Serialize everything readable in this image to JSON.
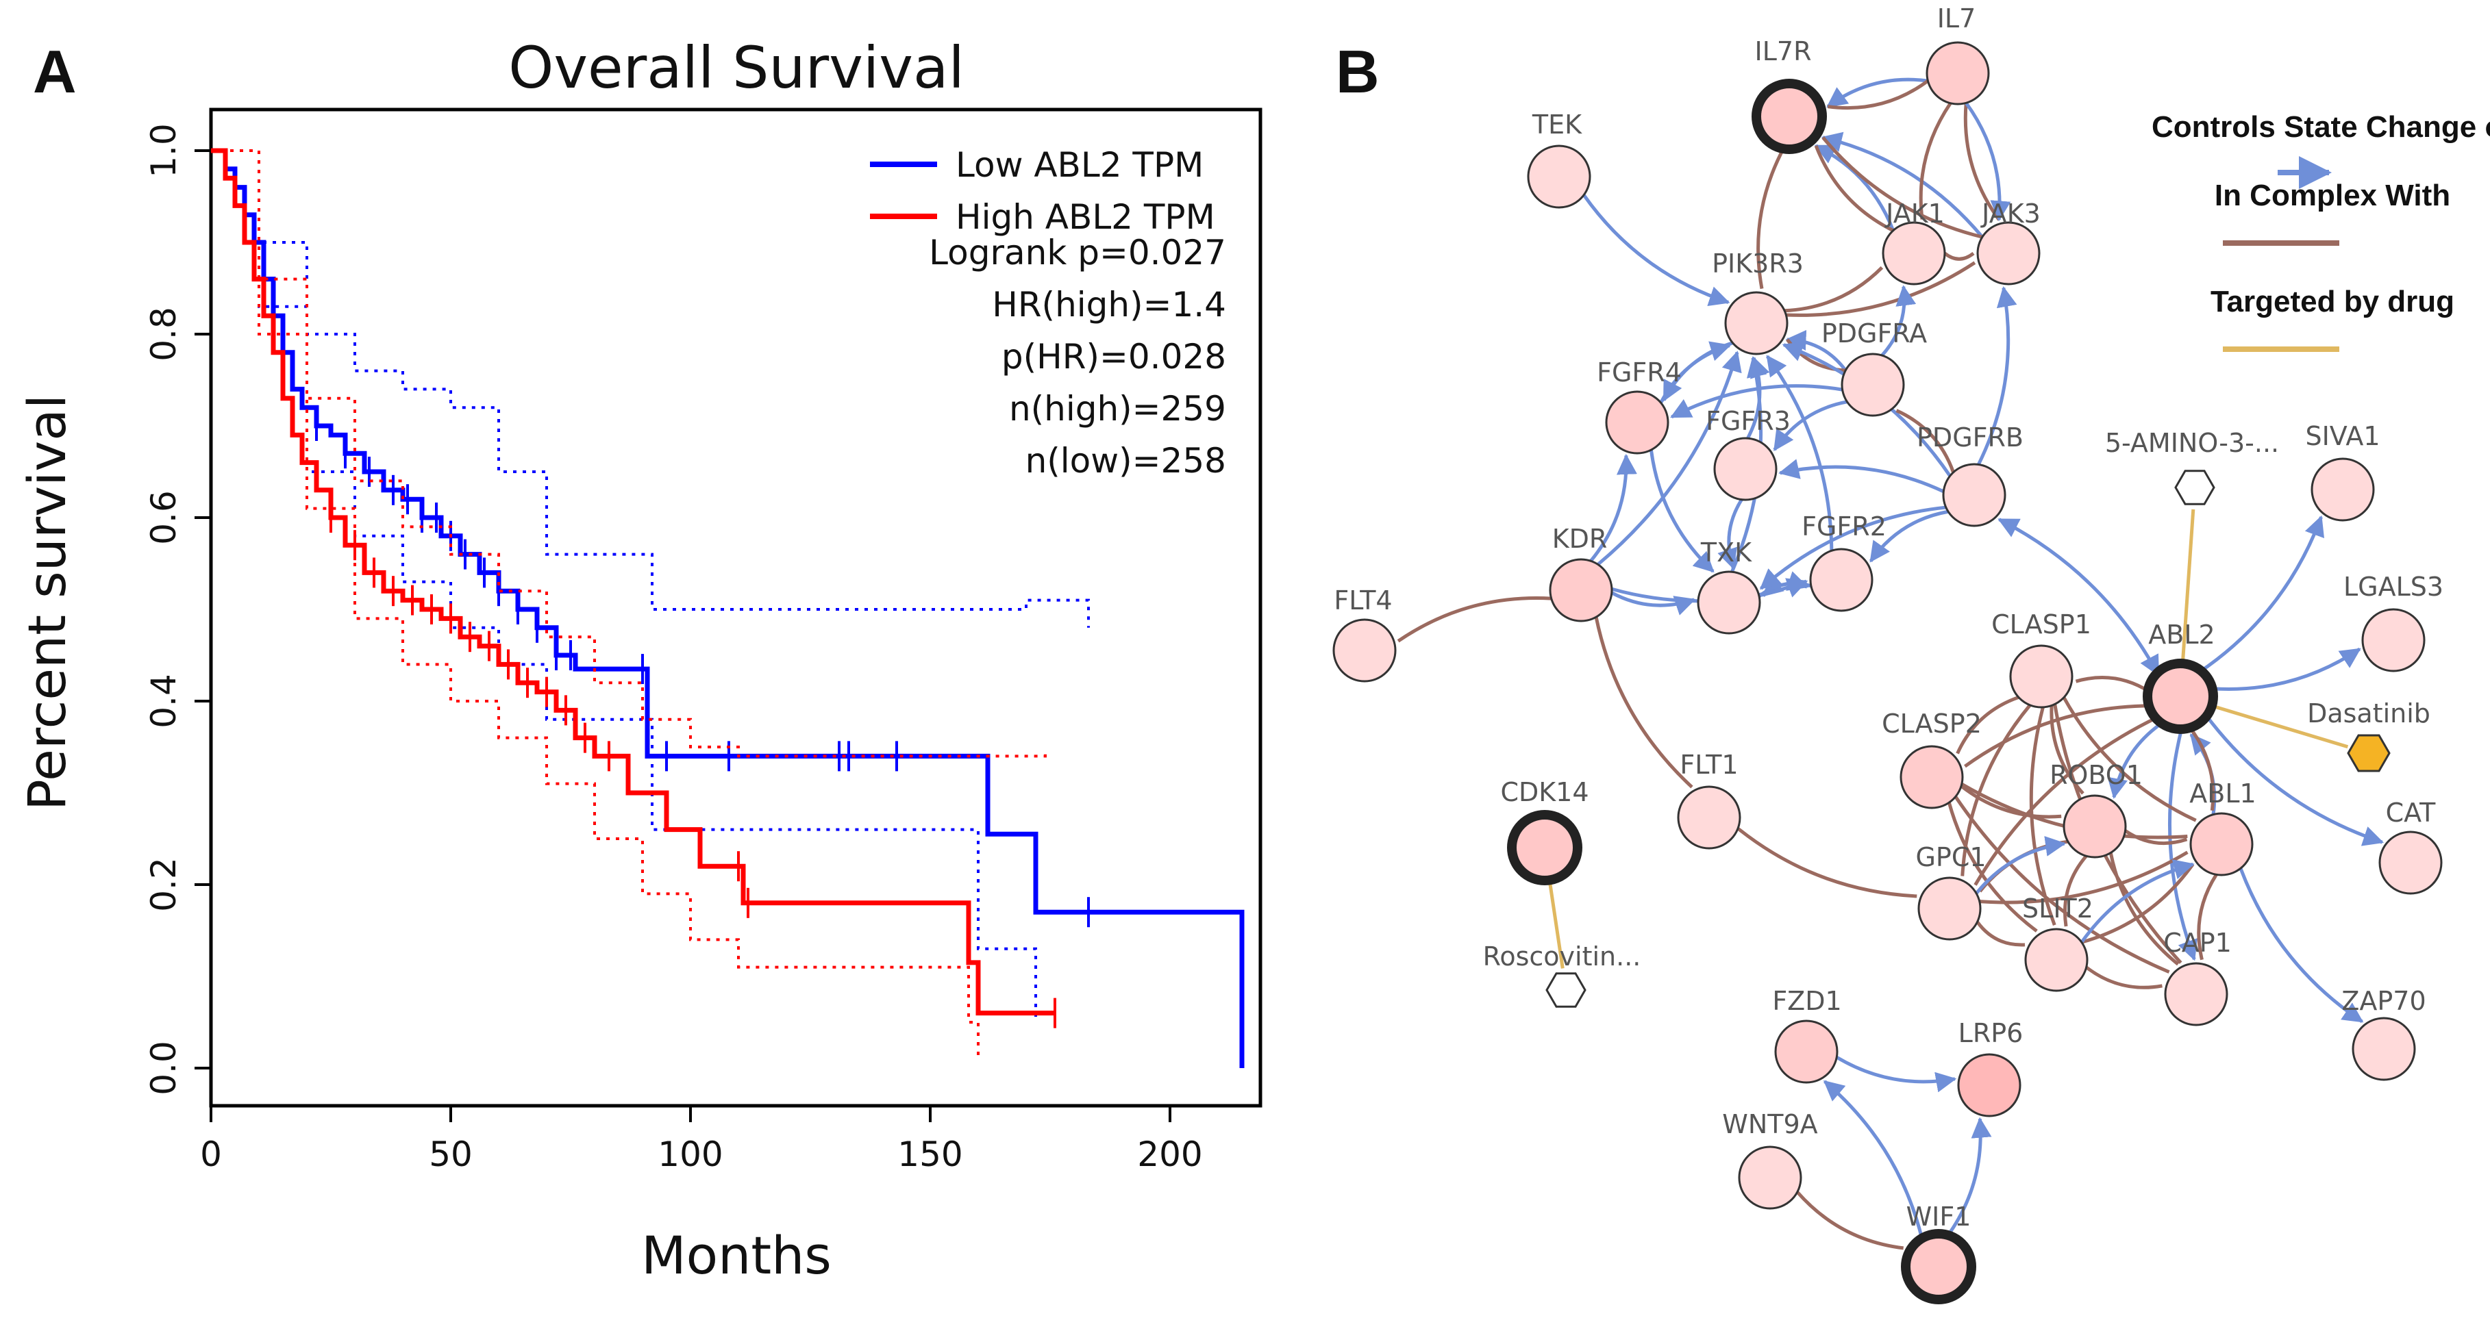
{
  "panels": {
    "a": "A",
    "b": "B"
  },
  "chart_data": [
    {
      "type": "line",
      "title": "Overall Survival",
      "xlabel": "Months",
      "ylabel": "Percent survival",
      "xlim": [
        0,
        215
      ],
      "ylim": [
        0,
        1.0
      ],
      "x_ticks": [
        0,
        50,
        100,
        150,
        200
      ],
      "x_tick_labels": [
        "0",
        "50",
        "100",
        "150",
        "200"
      ],
      "y_ticks": [
        0.0,
        0.2,
        0.4,
        0.6,
        0.8,
        1.0
      ],
      "y_tick_labels": [
        "0.0",
        "0.2",
        "0.4",
        "0.6",
        "0.8",
        "1.0"
      ],
      "legend_position": "top-right",
      "stats": [
        "Logrank p=0.027",
        "HR(high)=1.4",
        "p(HR)=0.028",
        "n(high)=259",
        "n(low)=258"
      ],
      "series": [
        {
          "name": "Low ABL2 TPM",
          "color": "#0000ff",
          "x": [
            0,
            3,
            5,
            7,
            9,
            11,
            13,
            15,
            17,
            19,
            22,
            25,
            28,
            32,
            36,
            40,
            44,
            48,
            52,
            56,
            60,
            64,
            68,
            72,
            76,
            91,
            162,
            172,
            215
          ],
          "y": [
            1.0,
            0.98,
            0.96,
            0.93,
            0.9,
            0.86,
            0.82,
            0.78,
            0.74,
            0.72,
            0.7,
            0.69,
            0.67,
            0.65,
            0.63,
            0.62,
            0.6,
            0.58,
            0.56,
            0.54,
            0.52,
            0.5,
            0.48,
            0.45,
            0.435,
            0.34,
            0.255,
            0.17,
            0.0
          ],
          "upper_ci": {
            "x": [
              0,
              10,
              20,
              30,
              40,
              50,
              60,
              70,
              92,
              160,
              170,
              183
            ],
            "y": [
              1.0,
              0.9,
              0.8,
              0.76,
              0.74,
              0.72,
              0.65,
              0.56,
              0.5,
              0.5,
              0.51,
              0.48
            ]
          },
          "lower_ci": {
            "x": [
              0,
              10,
              20,
              30,
              40,
              50,
              60,
              70,
              92,
              160,
              172
            ],
            "y": [
              1.0,
              0.83,
              0.65,
              0.58,
              0.53,
              0.48,
              0.44,
              0.38,
              0.26,
              0.13,
              0.05
            ]
          },
          "censor_x": [
            22,
            28,
            33,
            38,
            41,
            44,
            47,
            50,
            53,
            57,
            60,
            64,
            68,
            72,
            75,
            90,
            95,
            108,
            131,
            133,
            143,
            183
          ]
        },
        {
          "name": "High ABL2 TPM",
          "color": "#ff0000",
          "x": [
            0,
            3,
            5,
            7,
            9,
            11,
            13,
            15,
            17,
            19,
            22,
            25,
            28,
            32,
            36,
            40,
            44,
            48,
            52,
            56,
            60,
            64,
            68,
            72,
            76,
            80,
            87,
            95,
            102,
            111,
            158,
            160,
            176
          ],
          "y": [
            1.0,
            0.97,
            0.94,
            0.9,
            0.86,
            0.82,
            0.78,
            0.73,
            0.69,
            0.66,
            0.63,
            0.6,
            0.57,
            0.54,
            0.52,
            0.51,
            0.5,
            0.49,
            0.47,
            0.46,
            0.44,
            0.42,
            0.41,
            0.39,
            0.36,
            0.34,
            0.3,
            0.26,
            0.22,
            0.18,
            0.115,
            0.06,
            0.06
          ],
          "upper_ci": {
            "x": [
              0,
              10,
              20,
              30,
              40,
              50,
              60,
              70,
              80,
              90,
              100,
              110,
              158,
              174
            ],
            "y": [
              1.0,
              0.86,
              0.73,
              0.64,
              0.59,
              0.56,
              0.52,
              0.47,
              0.42,
              0.38,
              0.35,
              0.34,
              0.34,
              0.345
            ]
          },
          "lower_ci": {
            "x": [
              0,
              10,
              20,
              30,
              40,
              50,
              60,
              70,
              80,
              90,
              100,
              110,
              158,
              160
            ],
            "y": [
              1.0,
              0.8,
              0.61,
              0.49,
              0.44,
              0.4,
              0.36,
              0.31,
              0.25,
              0.19,
              0.14,
              0.11,
              0.05,
              0.01
            ]
          },
          "censor_x": [
            25,
            30,
            34,
            38,
            42,
            46,
            50,
            54,
            58,
            62,
            66,
            70,
            74,
            78,
            83,
            110,
            112,
            176
          ]
        }
      ]
    },
    {
      "type": "network",
      "legend": [
        {
          "label": "Controls State Change of",
          "color": "#6f8fd8"
        },
        {
          "label": "In Complex With",
          "color": "#9b6a5f"
        },
        {
          "label": "Targeted by drug",
          "color": "#e0b860"
        }
      ],
      "nodes": [
        {
          "id": "IL7R",
          "label": "IL7R",
          "kind": "query"
        },
        {
          "id": "IL7",
          "label": "IL7",
          "kind": "gene"
        },
        {
          "id": "TEK",
          "label": "TEK",
          "kind": "gene"
        },
        {
          "id": "JAK1",
          "label": "JAK1",
          "kind": "gene"
        },
        {
          "id": "JAK3",
          "label": "JAK3",
          "kind": "gene"
        },
        {
          "id": "PIK3R3",
          "label": "PIK3R3",
          "kind": "gene"
        },
        {
          "id": "PDGFRA",
          "label": "PDGFRA",
          "kind": "gene"
        },
        {
          "id": "FGFR4",
          "label": "FGFR4",
          "kind": "gene"
        },
        {
          "id": "FGFR3",
          "label": "FGFR3",
          "kind": "gene"
        },
        {
          "id": "PDGFRB",
          "label": "PDGFRB",
          "kind": "gene"
        },
        {
          "id": "5AMINO",
          "label": "5-AMINO-3-...",
          "kind": "drug"
        },
        {
          "id": "SIVA1",
          "label": "SIVA1",
          "kind": "gene"
        },
        {
          "id": "KDR",
          "label": "KDR",
          "kind": "gene"
        },
        {
          "id": "FGFR2",
          "label": "FGFR2",
          "kind": "gene"
        },
        {
          "id": "TXK",
          "label": "TXK",
          "kind": "gene"
        },
        {
          "id": "FLT4",
          "label": "FLT4",
          "kind": "gene"
        },
        {
          "id": "LGALS3",
          "label": "LGALS3",
          "kind": "gene"
        },
        {
          "id": "CLASP1",
          "label": "CLASP1",
          "kind": "gene"
        },
        {
          "id": "ABL2",
          "label": "ABL2",
          "kind": "query"
        },
        {
          "id": "Dasatinib",
          "label": "Dasatinib",
          "kind": "drug-active"
        },
        {
          "id": "CLASP2",
          "label": "CLASP2",
          "kind": "gene"
        },
        {
          "id": "ROBO1",
          "label": "ROBO1",
          "kind": "gene"
        },
        {
          "id": "ABL1",
          "label": "ABL1",
          "kind": "gene"
        },
        {
          "id": "CAT",
          "label": "CAT",
          "kind": "gene"
        },
        {
          "id": "FLT1",
          "label": "FLT1",
          "kind": "gene"
        },
        {
          "id": "CDK14",
          "label": "CDK14",
          "kind": "query"
        },
        {
          "id": "GPC1",
          "label": "GPC1",
          "kind": "gene"
        },
        {
          "id": "SLIT2",
          "label": "SLIT2",
          "kind": "gene"
        },
        {
          "id": "CAP1",
          "label": "CAP1",
          "kind": "gene"
        },
        {
          "id": "Roscovitine",
          "label": "Roscovitin...",
          "kind": "drug"
        },
        {
          "id": "ZAP70",
          "label": "ZAP70",
          "kind": "gene"
        },
        {
          "id": "FZD1",
          "label": "FZD1",
          "kind": "gene"
        },
        {
          "id": "LRP6",
          "label": "LRP6",
          "kind": "gene"
        },
        {
          "id": "WNT9A",
          "label": "WNT9A",
          "kind": "gene"
        },
        {
          "id": "WIF1",
          "label": "WIF1",
          "kind": "query"
        }
      ],
      "edges": [
        {
          "s": "IL7",
          "t": "IL7R",
          "type": "state",
          "arrow": "t"
        },
        {
          "s": "IL7",
          "t": "IL7R",
          "type": "complex"
        },
        {
          "s": "IL7R",
          "t": "PIK3R3",
          "type": "complex"
        },
        {
          "s": "JAK1",
          "t": "IL7R",
          "type": "state",
          "arrow": "t"
        },
        {
          "s": "JAK3",
          "t": "IL7R",
          "type": "state",
          "arrow": "t"
        },
        {
          "s": "JAK1",
          "t": "IL7R",
          "type": "complex"
        },
        {
          "s": "JAK3",
          "t": "IL7R",
          "type": "complex"
        },
        {
          "s": "IL7",
          "t": "JAK1",
          "type": "complex"
        },
        {
          "s": "IL7",
          "t": "JAK3",
          "type": "complex"
        },
        {
          "s": "IL7",
          "t": "JAK3",
          "type": "state",
          "arrow": "t"
        },
        {
          "s": "JAK1",
          "t": "JAK3",
          "type": "complex"
        },
        {
          "s": "PIK3R3",
          "t": "JAK1",
          "type": "complex"
        },
        {
          "s": "PIK3R3",
          "t": "JAK3",
          "type": "complex"
        },
        {
          "s": "TEK",
          "t": "PIK3R3",
          "type": "state",
          "arrow": "t"
        },
        {
          "s": "PDGFRA",
          "t": "PIK3R3",
          "type": "state",
          "arrow": "t"
        },
        {
          "s": "PDGFRA",
          "t": "PIK3R3",
          "type": "complex"
        },
        {
          "s": "PDGFRA",
          "t": "JAK1",
          "type": "state",
          "arrow": "t"
        },
        {
          "s": "PDGFRB",
          "t": "JAK3",
          "type": "state",
          "arrow": "t"
        },
        {
          "s": "PDGFRB",
          "t": "PIK3R3",
          "type": "state",
          "arrow": "t"
        },
        {
          "s": "PIK3R3",
          "t": "FGFR4",
          "type": "state",
          "arrow": "t"
        },
        {
          "s": "FGFR4",
          "t": "PIK3R3",
          "type": "state",
          "arrow": "t"
        },
        {
          "s": "FGFR3",
          "t": "PIK3R3",
          "type": "state",
          "arrow": "t"
        },
        {
          "s": "KDR",
          "t": "PIK3R3",
          "type": "state",
          "arrow": "t"
        },
        {
          "s": "TXK",
          "t": "PIK3R3",
          "type": "state",
          "arrow": "t"
        },
        {
          "s": "FGFR2",
          "t": "PIK3R3",
          "type": "state",
          "arrow": "t"
        },
        {
          "s": "PDGFRA",
          "t": "FGFR4",
          "type": "state",
          "arrow": "t"
        },
        {
          "s": "PDGFRA",
          "t": "FGFR3",
          "type": "state",
          "arrow": "t"
        },
        {
          "s": "PDGFRB",
          "t": "FGFR3",
          "type": "state",
          "arrow": "t"
        },
        {
          "s": "PDGFRB",
          "t": "FGFR2",
          "type": "state",
          "arrow": "t"
        },
        {
          "s": "PDGFRB",
          "t": "TXK",
          "type": "state",
          "arrow": "t"
        },
        {
          "s": "PDGFRB",
          "t": "PDGFRA",
          "type": "complex"
        },
        {
          "s": "KDR",
          "t": "FGFR4",
          "type": "state",
          "arrow": "t"
        },
        {
          "s": "FGFR4",
          "t": "TXK",
          "type": "state",
          "arrow": "t"
        },
        {
          "s": "FGFR3",
          "t": "TXK",
          "type": "state",
          "arrow": "t"
        },
        {
          "s": "KDR",
          "t": "TXK",
          "type": "state",
          "arrow": "t"
        },
        {
          "s": "FGFR2",
          "t": "TXK",
          "type": "state",
          "arrow": "t"
        },
        {
          "s": "TXK",
          "t": "FGFR2",
          "type": "state",
          "arrow": "t"
        },
        {
          "s": "KDR",
          "t": "FGFR2",
          "type": "state",
          "arrow": "t"
        },
        {
          "s": "KDR",
          "t": "FLT4",
          "type": "complex"
        },
        {
          "s": "KDR",
          "t": "FLT1",
          "type": "complex"
        },
        {
          "s": "FLT1",
          "t": "GPC1",
          "type": "complex"
        },
        {
          "s": "ABL2",
          "t": "PDGFRB",
          "type": "state",
          "arrow": "both"
        },
        {
          "s": "ABL2",
          "t": "SIVA1",
          "type": "state",
          "arrow": "t"
        },
        {
          "s": "ABL2",
          "t": "LGALS3",
          "type": "state",
          "arrow": "t"
        },
        {
          "s": "ABL2",
          "t": "CAT",
          "type": "state",
          "arrow": "t"
        },
        {
          "s": "ABL1",
          "t": "ZAP70",
          "type": "state",
          "arrow": "t"
        },
        {
          "s": "ABL2",
          "t": "ROBO1",
          "type": "state",
          "arrow": "t"
        },
        {
          "s": "ABL1",
          "t": "ABL2",
          "type": "state",
          "arrow": "t"
        },
        {
          "s": "ABL2",
          "t": "CAP1",
          "type": "state",
          "arrow": "t"
        },
        {
          "s": "ABL2",
          "t": "CLASP1",
          "type": "complex"
        },
        {
          "s": "ABL2",
          "t": "CLASP2",
          "type": "complex"
        },
        {
          "s": "ABL2",
          "t": "ABL1",
          "type": "complex"
        },
        {
          "s": "ABL2",
          "t": "GPC1",
          "type": "complex"
        },
        {
          "s": "CLASP1",
          "t": "CLASP2",
          "type": "complex"
        },
        {
          "s": "CLASP1",
          "t": "ROBO1",
          "type": "complex"
        },
        {
          "s": "CLASP1",
          "t": "ABL1",
          "type": "complex"
        },
        {
          "s": "CLASP1",
          "t": "GPC1",
          "type": "complex"
        },
        {
          "s": "CLASP1",
          "t": "SLIT2",
          "type": "complex"
        },
        {
          "s": "CLASP1",
          "t": "CAP1",
          "type": "complex"
        },
        {
          "s": "CLASP2",
          "t": "ROBO1",
          "type": "complex"
        },
        {
          "s": "CLASP2",
          "t": "ABL1",
          "type": "complex"
        },
        {
          "s": "CLASP2",
          "t": "SLIT2",
          "type": "complex"
        },
        {
          "s": "CLASP2",
          "t": "CAP1",
          "type": "complex"
        },
        {
          "s": "ROBO1",
          "t": "ABL1",
          "type": "complex"
        },
        {
          "s": "ROBO1",
          "t": "GPC1",
          "type": "complex"
        },
        {
          "s": "ROBO1",
          "t": "SLIT2",
          "type": "complex"
        },
        {
          "s": "ROBO1",
          "t": "CAP1",
          "type": "complex"
        },
        {
          "s": "GPC1",
          "t": "SLIT2",
          "type": "complex"
        },
        {
          "s": "GPC1",
          "t": "ROBO1",
          "type": "state",
          "arrow": "t"
        },
        {
          "s": "SLIT2",
          "t": "ABL1",
          "type": "complex"
        },
        {
          "s": "SLIT2",
          "t": "CAP1",
          "type": "complex"
        },
        {
          "s": "GPC1",
          "t": "ABL1",
          "type": "complex"
        },
        {
          "s": "SLIT2",
          "t": "ABL1",
          "type": "state",
          "arrow": "t"
        },
        {
          "s": "ABL1",
          "t": "CAP1",
          "type": "complex"
        },
        {
          "s": "ABL2",
          "t": "5AMINO",
          "type": "drug"
        },
        {
          "s": "ABL2",
          "t": "Dasatinib",
          "type": "drug"
        },
        {
          "s": "CDK14",
          "t": "Roscovitine",
          "type": "drug"
        },
        {
          "s": "WIF1",
          "t": "FZD1",
          "type": "state",
          "arrow": "t"
        },
        {
          "s": "FZD1",
          "t": "LRP6",
          "type": "state",
          "arrow": "t"
        },
        {
          "s": "WIF1",
          "t": "LRP6",
          "type": "state",
          "arrow": "t"
        },
        {
          "s": "WNT9A",
          "t": "WIF1",
          "type": "complex"
        }
      ]
    }
  ]
}
